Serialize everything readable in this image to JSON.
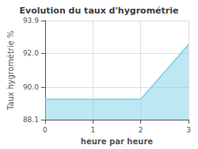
{
  "chart_data": {
    "type": "area",
    "title": "Evolution du taux d'hygrométrie",
    "x_label": "heure par heure",
    "y_label": "Taux hygrométrie %",
    "x": [
      0,
      2,
      3
    ],
    "series": [
      {
        "values": [
          89.3,
          89.3,
          92.5
        ],
        "color": "#7acfe8"
      }
    ],
    "xlim": [
      0,
      3
    ],
    "xticks": [
      0,
      1,
      2,
      3
    ],
    "ylim": [
      88.1,
      93.9
    ],
    "yticks": [
      88.1,
      {
        "value": 90,
        "label": "90.0"
      },
      {
        "value": 92,
        "label": "92.0"
      },
      93.9
    ],
    "grid": true
  }
}
